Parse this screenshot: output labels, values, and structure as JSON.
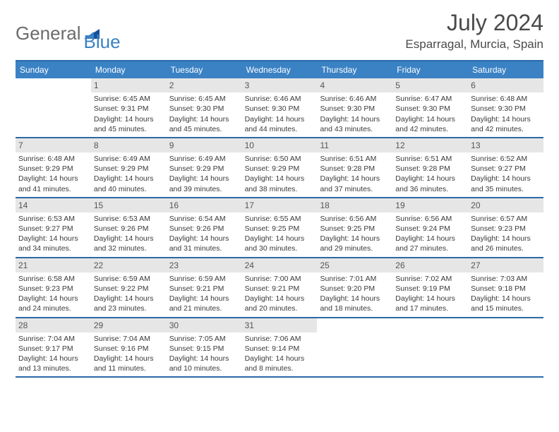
{
  "logo": {
    "text1": "General",
    "text2": "Blue"
  },
  "title": "July 2024",
  "location": "Esparragal, Murcia, Spain",
  "colors": {
    "header_bg": "#3a82c4",
    "border": "#2b6aa8",
    "daynum_bg": "#e6e6e6",
    "logo_grey": "#6b6b6b",
    "logo_blue": "#3a82c4"
  },
  "day_names": [
    "Sunday",
    "Monday",
    "Tuesday",
    "Wednesday",
    "Thursday",
    "Friday",
    "Saturday"
  ],
  "weeks": [
    [
      {
        "n": "",
        "sr": "",
        "ss": "",
        "dl": ""
      },
      {
        "n": "1",
        "sr": "6:45 AM",
        "ss": "9:31 PM",
        "dl": "14 hours and 45 minutes."
      },
      {
        "n": "2",
        "sr": "6:45 AM",
        "ss": "9:30 PM",
        "dl": "14 hours and 45 minutes."
      },
      {
        "n": "3",
        "sr": "6:46 AM",
        "ss": "9:30 PM",
        "dl": "14 hours and 44 minutes."
      },
      {
        "n": "4",
        "sr": "6:46 AM",
        "ss": "9:30 PM",
        "dl": "14 hours and 43 minutes."
      },
      {
        "n": "5",
        "sr": "6:47 AM",
        "ss": "9:30 PM",
        "dl": "14 hours and 42 minutes."
      },
      {
        "n": "6",
        "sr": "6:48 AM",
        "ss": "9:30 PM",
        "dl": "14 hours and 42 minutes."
      }
    ],
    [
      {
        "n": "7",
        "sr": "6:48 AM",
        "ss": "9:29 PM",
        "dl": "14 hours and 41 minutes."
      },
      {
        "n": "8",
        "sr": "6:49 AM",
        "ss": "9:29 PM",
        "dl": "14 hours and 40 minutes."
      },
      {
        "n": "9",
        "sr": "6:49 AM",
        "ss": "9:29 PM",
        "dl": "14 hours and 39 minutes."
      },
      {
        "n": "10",
        "sr": "6:50 AM",
        "ss": "9:29 PM",
        "dl": "14 hours and 38 minutes."
      },
      {
        "n": "11",
        "sr": "6:51 AM",
        "ss": "9:28 PM",
        "dl": "14 hours and 37 minutes."
      },
      {
        "n": "12",
        "sr": "6:51 AM",
        "ss": "9:28 PM",
        "dl": "14 hours and 36 minutes."
      },
      {
        "n": "13",
        "sr": "6:52 AM",
        "ss": "9:27 PM",
        "dl": "14 hours and 35 minutes."
      }
    ],
    [
      {
        "n": "14",
        "sr": "6:53 AM",
        "ss": "9:27 PM",
        "dl": "14 hours and 34 minutes."
      },
      {
        "n": "15",
        "sr": "6:53 AM",
        "ss": "9:26 PM",
        "dl": "14 hours and 32 minutes."
      },
      {
        "n": "16",
        "sr": "6:54 AM",
        "ss": "9:26 PM",
        "dl": "14 hours and 31 minutes."
      },
      {
        "n": "17",
        "sr": "6:55 AM",
        "ss": "9:25 PM",
        "dl": "14 hours and 30 minutes."
      },
      {
        "n": "18",
        "sr": "6:56 AM",
        "ss": "9:25 PM",
        "dl": "14 hours and 29 minutes."
      },
      {
        "n": "19",
        "sr": "6:56 AM",
        "ss": "9:24 PM",
        "dl": "14 hours and 27 minutes."
      },
      {
        "n": "20",
        "sr": "6:57 AM",
        "ss": "9:23 PM",
        "dl": "14 hours and 26 minutes."
      }
    ],
    [
      {
        "n": "21",
        "sr": "6:58 AM",
        "ss": "9:23 PM",
        "dl": "14 hours and 24 minutes."
      },
      {
        "n": "22",
        "sr": "6:59 AM",
        "ss": "9:22 PM",
        "dl": "14 hours and 23 minutes."
      },
      {
        "n": "23",
        "sr": "6:59 AM",
        "ss": "9:21 PM",
        "dl": "14 hours and 21 minutes."
      },
      {
        "n": "24",
        "sr": "7:00 AM",
        "ss": "9:21 PM",
        "dl": "14 hours and 20 minutes."
      },
      {
        "n": "25",
        "sr": "7:01 AM",
        "ss": "9:20 PM",
        "dl": "14 hours and 18 minutes."
      },
      {
        "n": "26",
        "sr": "7:02 AM",
        "ss": "9:19 PM",
        "dl": "14 hours and 17 minutes."
      },
      {
        "n": "27",
        "sr": "7:03 AM",
        "ss": "9:18 PM",
        "dl": "14 hours and 15 minutes."
      }
    ],
    [
      {
        "n": "28",
        "sr": "7:04 AM",
        "ss": "9:17 PM",
        "dl": "14 hours and 13 minutes."
      },
      {
        "n": "29",
        "sr": "7:04 AM",
        "ss": "9:16 PM",
        "dl": "14 hours and 11 minutes."
      },
      {
        "n": "30",
        "sr": "7:05 AM",
        "ss": "9:15 PM",
        "dl": "14 hours and 10 minutes."
      },
      {
        "n": "31",
        "sr": "7:06 AM",
        "ss": "9:14 PM",
        "dl": "14 hours and 8 minutes."
      },
      {
        "n": "",
        "sr": "",
        "ss": "",
        "dl": ""
      },
      {
        "n": "",
        "sr": "",
        "ss": "",
        "dl": ""
      },
      {
        "n": "",
        "sr": "",
        "ss": "",
        "dl": ""
      }
    ]
  ]
}
